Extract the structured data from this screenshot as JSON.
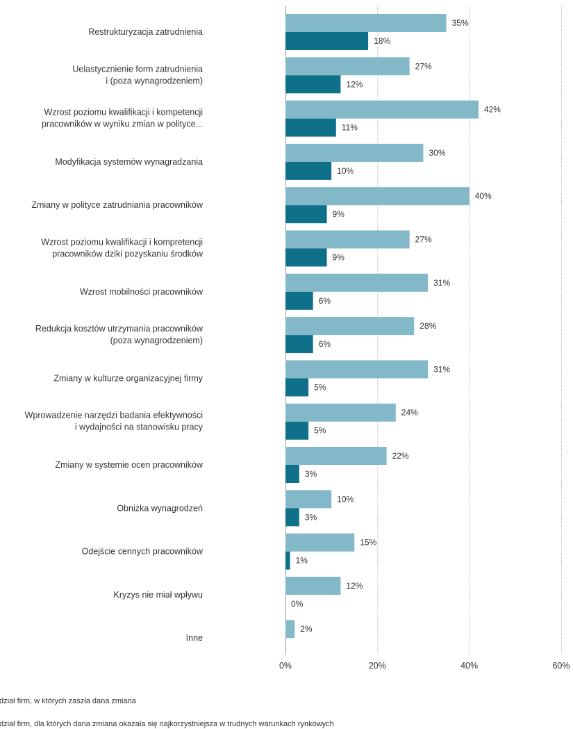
{
  "colors": {
    "light": "#83b8c8",
    "dark": "#0f7189",
    "grid": "#999999"
  },
  "chart_data": {
    "type": "bar",
    "orientation": "horizontal",
    "categories": [
      [
        "Restrukturyzacja zatrudnienia"
      ],
      [
        "Uelastycznienie form zatrudnienia",
        "i (poza wynagrodzeniem)"
      ],
      [
        "Wzrost poziomu kwalifikacji i kompetencji",
        "pracowników w wyniku zmian w polityce..."
      ],
      [
        "Modyfikacja systemów wynagradzania"
      ],
      [
        "Zmiany w polityce zatrudniania pracowników"
      ],
      [
        "Wzrost poziomu kwalifikacji i kompretencji",
        "pracowników dziki pozyskaniu środków"
      ],
      [
        "Wzrost mobilności pracowników"
      ],
      [
        "Redukcja kosztów utrzymania pracowników",
        "(poza wynagrodzeniem)"
      ],
      [
        "Zmiany w kulturze organizacyjnej firmy"
      ],
      [
        "Wprowadzenie narzędzi badania efektywności",
        "i wydajności na stanowisku pracy"
      ],
      [
        "Zmiany w systemie ocen pracowników"
      ],
      [
        "Obniżka wynagrodzeń"
      ],
      [
        "Odejście cennych pracowników"
      ],
      [
        "Kryzys nie miał wpływu"
      ],
      [
        "Inne"
      ]
    ],
    "series": [
      {
        "name": "Udział firm, w których zaszła dana zmiana",
        "color": "light",
        "values": [
          35,
          27,
          42,
          30,
          40,
          27,
          31,
          28,
          31,
          24,
          22,
          10,
          15,
          12,
          2
        ],
        "labels": [
          "35%",
          "27%",
          "42%",
          "30%",
          "40%",
          "27%",
          "31%",
          "28%",
          "31%",
          "24%",
          "22%",
          "10%",
          "15%",
          "12%",
          "2%"
        ]
      },
      {
        "name": "Udział firm, dla których dana zmiana okazała się najkorzystniejsza w trudnych warunkach rynkowych",
        "color": "dark",
        "values": [
          18,
          12,
          11,
          10,
          9,
          9,
          6,
          6,
          5,
          5,
          3,
          3,
          1,
          0,
          null
        ],
        "labels": [
          "18%",
          "12%",
          "11%",
          "10%",
          "9%",
          "9%",
          "6%",
          "6%",
          "5%",
          "5%",
          "3%",
          "3%",
          "1%",
          "0%",
          null
        ]
      }
    ],
    "xlim": [
      0,
      60
    ],
    "xticks": [
      0,
      20,
      40,
      60
    ],
    "xtick_labels": [
      "0%",
      "20%",
      "40%",
      "60%"
    ],
    "grid": "vertical dotted",
    "legend": {
      "placement": "bottom-left",
      "items": [
        "dział firm, w których zaszła dana zmiana",
        "dział firm, dla których dana zmiana okazała się najkorzystniejsza w trudnych warunkach rynkowych"
      ]
    }
  }
}
